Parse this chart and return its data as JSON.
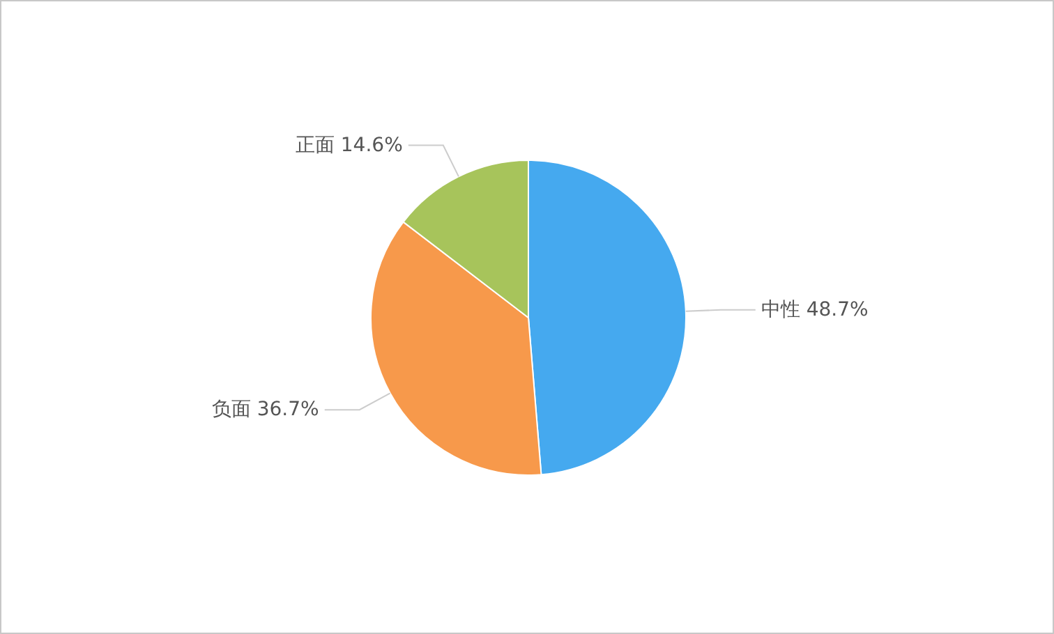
{
  "chart_data": {
    "type": "pie",
    "categories": [
      "中性",
      "负面",
      "正面"
    ],
    "values": [
      48.7,
      36.7,
      14.6
    ],
    "colors": [
      "#45a9ef",
      "#f7994b",
      "#a7c45b"
    ],
    "value_labels": [
      "48.7%",
      "36.7%",
      "14.6%"
    ]
  }
}
